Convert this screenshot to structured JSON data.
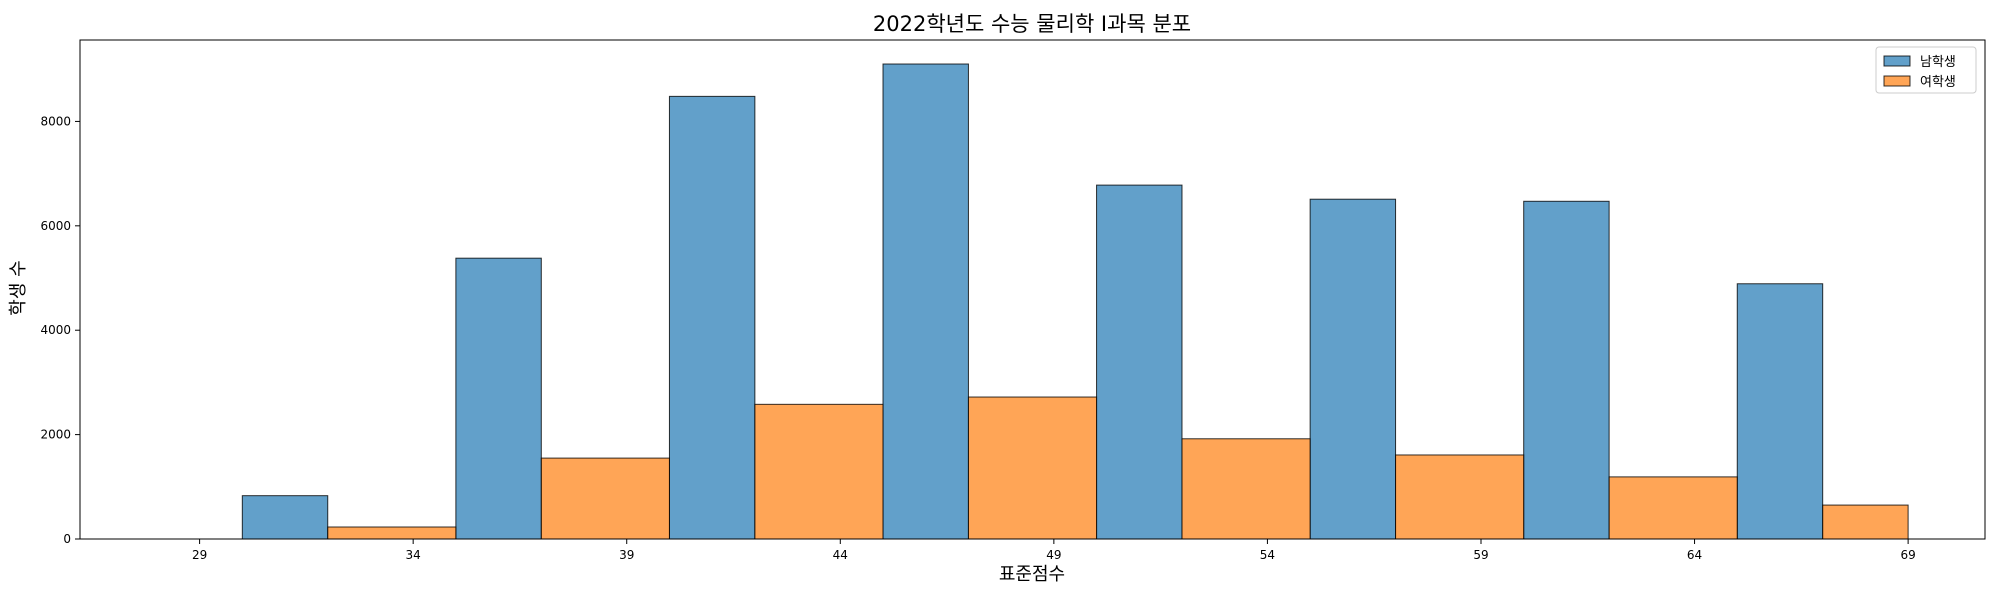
{
  "chart_data": {
    "type": "bar",
    "title": "2022학년도 수능 물리학 I과목 분포",
    "xlabel": "표준점수",
    "ylabel": "학생 수",
    "xlim": [
      26.2,
      70.8
    ],
    "ylim": [
      0,
      9560
    ],
    "xticks": [
      29,
      34,
      39,
      44,
      49,
      54,
      59,
      64,
      69
    ],
    "yticks": [
      0,
      2000,
      4000,
      6000,
      8000
    ],
    "bin_edges": [
      30,
      32,
      35,
      37,
      40,
      42,
      45,
      47,
      50,
      52,
      55,
      57,
      60,
      62,
      65,
      67,
      69
    ],
    "series": [
      {
        "name": "남학생",
        "color": "#1f77b4",
        "values": [
          830,
          5380,
          8480,
          9100,
          6780,
          6510,
          6470,
          4890
        ]
      },
      {
        "name": "여학생",
        "color": "#ff7f0e",
        "values": [
          230,
          1550,
          2580,
          2720,
          1920,
          1610,
          1190,
          650
        ]
      }
    ],
    "grid": false,
    "legend_position": "top-right"
  }
}
